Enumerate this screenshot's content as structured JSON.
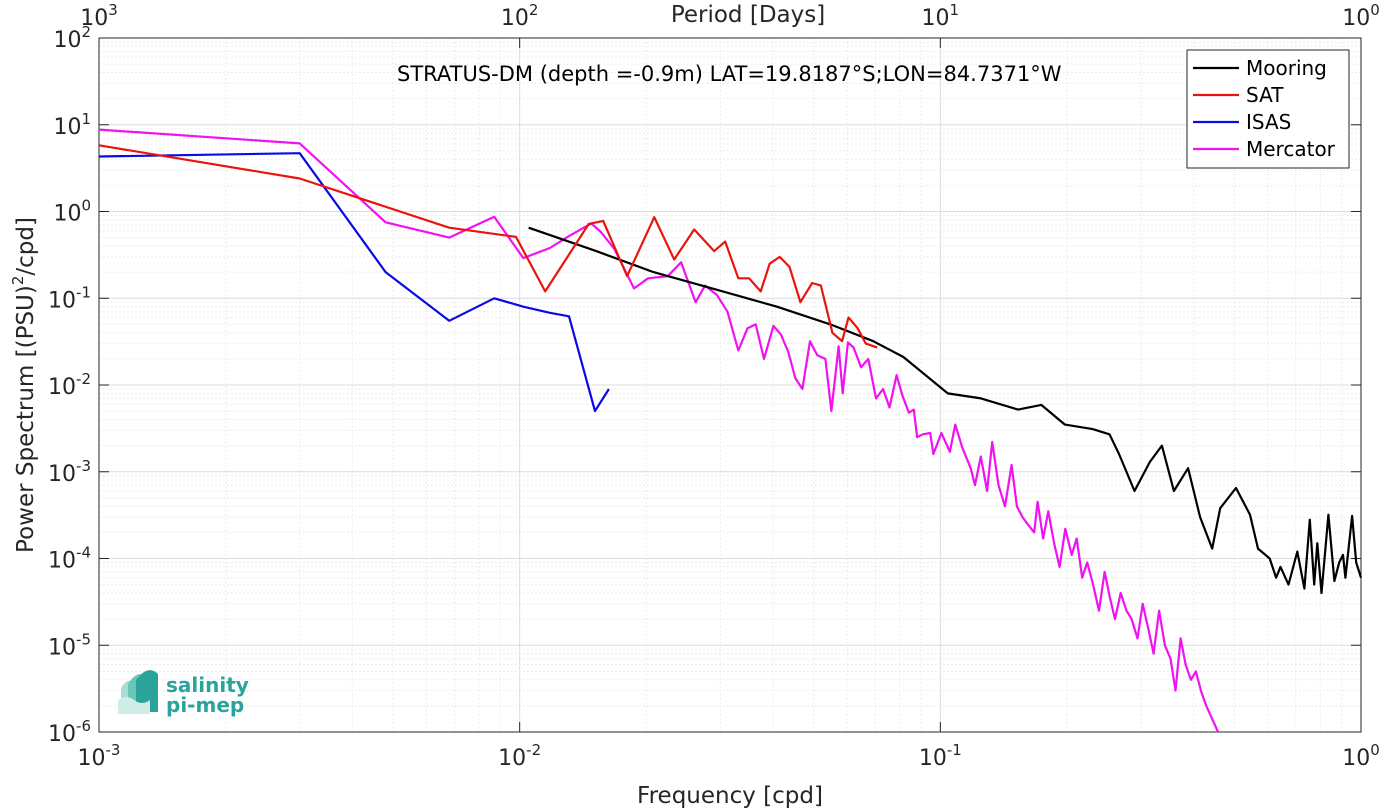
{
  "chart_data": {
    "type": "line",
    "title": "STRATUS-DM (depth =-0.9m) LAT=19.8187°S;LON=84.7371°W",
    "xlabel": "Frequency [cpd]",
    "ylabel_parts": [
      "Power Spectrum [(PSU)",
      "2",
      "/cpd]"
    ],
    "top_xlabel": "Period [Days]",
    "xscale": "log",
    "yscale": "log",
    "xlim": [
      0.001,
      1
    ],
    "ylim": [
      1e-06,
      100
    ],
    "grid": true,
    "legend_position": "top-right",
    "x_ticks": [
      {
        "value": 0.001,
        "base": "10",
        "exp": "-3"
      },
      {
        "value": 0.01,
        "base": "10",
        "exp": "-2"
      },
      {
        "value": 0.1,
        "base": "10",
        "exp": "-1"
      },
      {
        "value": 1,
        "base": "10",
        "exp": "0"
      }
    ],
    "top_x_ticks": [
      {
        "value": 0.001,
        "base": "10",
        "exp": "3"
      },
      {
        "value": 0.01,
        "base": "10",
        "exp": "2"
      },
      {
        "value": 0.1,
        "base": "10",
        "exp": "1"
      },
      {
        "value": 1,
        "base": "10",
        "exp": "0"
      }
    ],
    "y_ticks": [
      {
        "value": 100,
        "base": "10",
        "exp": "2"
      },
      {
        "value": 10,
        "base": "10",
        "exp": "1"
      },
      {
        "value": 1,
        "base": "10",
        "exp": "0"
      },
      {
        "value": 0.1,
        "base": "10",
        "exp": "-1"
      },
      {
        "value": 0.01,
        "base": "10",
        "exp": "-2"
      },
      {
        "value": 0.001,
        "base": "10",
        "exp": "-3"
      },
      {
        "value": 0.0001,
        "base": "10",
        "exp": "-4"
      },
      {
        "value": 1e-05,
        "base": "10",
        "exp": "-5"
      },
      {
        "value": 1e-06,
        "base": "10",
        "exp": "-6"
      }
    ],
    "series": [
      {
        "name": "Mooring",
        "color": "#000000",
        "x": [
          0.0105,
          0.0152,
          0.0208,
          0.0304,
          0.0409,
          0.0548,
          0.0693,
          0.0817,
          0.0922,
          0.1042,
          0.1249,
          0.1531,
          0.1738,
          0.1977,
          0.2301,
          0.2524,
          0.2659,
          0.2894,
          0.3149,
          0.3363,
          0.3592,
          0.3881,
          0.4145,
          0.4428,
          0.4626,
          0.5044,
          0.5446,
          0.5689,
          0.6066,
          0.6282,
          0.6437,
          0.6725,
          0.7057,
          0.7337,
          0.7556,
          0.7739,
          0.7873,
          0.8057,
          0.8368,
          0.8643,
          0.8875,
          0.9061,
          0.9184,
          0.9524,
          0.9741,
          1.0
        ],
        "y": [
          0.65,
          0.35,
          0.2,
          0.12,
          0.08,
          0.05,
          0.032,
          0.021,
          0.013,
          0.008,
          0.007,
          0.0052,
          0.0059,
          0.0035,
          0.0031,
          0.0027,
          0.0016,
          0.0006,
          0.0013,
          0.002,
          0.0006,
          0.0011,
          0.0003,
          0.00013,
          0.00038,
          0.00065,
          0.00032,
          0.00013,
          0.0001,
          6e-05,
          8e-05,
          5e-05,
          0.00012,
          4.5e-05,
          0.00028,
          5e-05,
          0.00015,
          4e-05,
          0.00032,
          5.5e-05,
          9e-05,
          0.00011,
          6e-05,
          0.00031,
          9e-05,
          6e-05
        ]
      },
      {
        "name": "SAT",
        "color": "#e8150d",
        "x": [
          0.001,
          0.003,
          0.0068,
          0.0098,
          0.0115,
          0.0146,
          0.0158,
          0.018,
          0.0209,
          0.0233,
          0.026,
          0.029,
          0.0308,
          0.0331,
          0.0351,
          0.0374,
          0.0393,
          0.0415,
          0.0438,
          0.0465,
          0.0496,
          0.052,
          0.0554,
          0.0584,
          0.0605,
          0.0636,
          0.0665,
          0.0708
        ],
        "y": [
          5.8,
          2.4,
          0.65,
          0.51,
          0.12,
          0.72,
          0.78,
          0.18,
          0.86,
          0.28,
          0.62,
          0.35,
          0.45,
          0.17,
          0.17,
          0.12,
          0.25,
          0.3,
          0.23,
          0.09,
          0.15,
          0.14,
          0.04,
          0.032,
          0.06,
          0.045,
          0.03,
          0.027
        ]
      },
      {
        "name": "ISAS",
        "color": "#0a0ae6",
        "x": [
          0.001,
          0.003,
          0.0048,
          0.0068,
          0.0087,
          0.0102,
          0.0118,
          0.0131,
          0.0151,
          0.0163
        ],
        "y": [
          4.3,
          4.7,
          0.2,
          0.055,
          0.1,
          0.08,
          0.068,
          0.062,
          0.005,
          0.009
        ]
      },
      {
        "name": "Mercator",
        "color": "#f012f0",
        "x": [
          0.001,
          0.003,
          0.0048,
          0.0068,
          0.0087,
          0.0102,
          0.0118,
          0.0131,
          0.0148,
          0.0156,
          0.0168,
          0.0187,
          0.0202,
          0.0225,
          0.0242,
          0.0262,
          0.0276,
          0.0294,
          0.0312,
          0.0331,
          0.0348,
          0.0364,
          0.0381,
          0.0401,
          0.0418,
          0.0435,
          0.0452,
          0.047,
          0.049,
          0.051,
          0.0533,
          0.0551,
          0.0573,
          0.0586,
          0.0603,
          0.0622,
          0.0648,
          0.0674,
          0.0703,
          0.0731,
          0.0757,
          0.0787,
          0.0813,
          0.0842,
          0.0865,
          0.0881,
          0.0909,
          0.0946,
          0.0963,
          0.1006,
          0.1054,
          0.1085,
          0.1128,
          0.1181,
          0.1209,
          0.1248,
          0.1292,
          0.1328,
          0.1375,
          0.1425,
          0.1477,
          0.1521,
          0.1568,
          0.1611,
          0.1672,
          0.1703,
          0.1755,
          0.1806,
          0.1864,
          0.1921,
          0.1982,
          0.2052,
          0.2109,
          0.2174,
          0.2234,
          0.2307,
          0.2383,
          0.2457,
          0.2531,
          0.2602,
          0.2684,
          0.2771,
          0.2849,
          0.2942,
          0.3028,
          0.3126,
          0.3214,
          0.3312,
          0.3418,
          0.3524,
          0.3622,
          0.3726,
          0.3829,
          0.3942,
          0.4051,
          0.4162,
          0.4288,
          0.4404,
          0.4572
        ],
        "y": [
          8.8,
          6.1,
          0.75,
          0.5,
          0.87,
          0.29,
          0.38,
          0.52,
          0.73,
          0.58,
          0.37,
          0.13,
          0.17,
          0.18,
          0.26,
          0.09,
          0.14,
          0.11,
          0.07,
          0.025,
          0.045,
          0.05,
          0.02,
          0.048,
          0.038,
          0.024,
          0.012,
          0.009,
          0.032,
          0.022,
          0.02,
          0.005,
          0.028,
          0.008,
          0.031,
          0.027,
          0.016,
          0.02,
          0.007,
          0.009,
          0.0055,
          0.013,
          0.0075,
          0.0048,
          0.0052,
          0.0025,
          0.0027,
          0.0028,
          0.0016,
          0.0028,
          0.0017,
          0.0035,
          0.0019,
          0.0011,
          0.0007,
          0.0015,
          0.0006,
          0.0022,
          0.0007,
          0.0004,
          0.0012,
          0.0004,
          0.0003,
          0.00025,
          0.0002,
          0.00045,
          0.00017,
          0.00035,
          0.00015,
          8e-05,
          0.00022,
          0.00011,
          0.00017,
          6e-05,
          9e-05,
          5e-05,
          2.5e-05,
          7e-05,
          3.5e-05,
          2e-05,
          4e-05,
          2.5e-05,
          2e-05,
          1.2e-05,
          3e-05,
          1.5e-05,
          8e-06,
          2.5e-05,
          1e-05,
          7e-06,
          3e-06,
          1.2e-05,
          6e-06,
          4e-06,
          5e-06,
          3e-06,
          2e-06,
          1.5e-06,
          1e-06
        ]
      }
    ]
  },
  "logo": {
    "line1": "salinity",
    "line2": "pi-mep",
    "color": "#2aa39a"
  }
}
